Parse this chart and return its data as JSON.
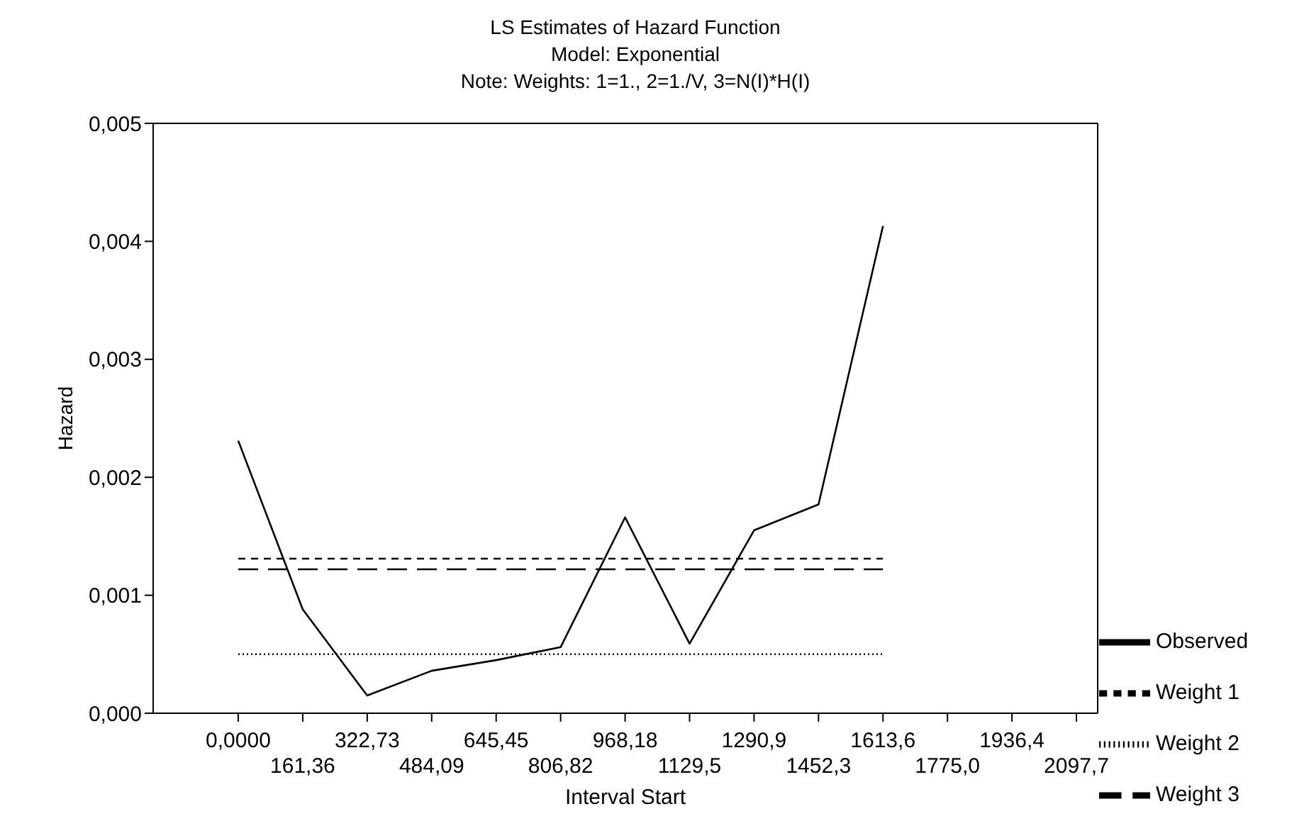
{
  "chart_data": {
    "type": "line",
    "title": "LS Estimates of Hazard Function",
    "subtitle": "Model: Exponential",
    "annotations": [
      "Note: Weights: 1=1., 2=1./V, 3=N(I)*H(I)"
    ],
    "xlabel": "Interval Start",
    "ylabel": "Hazard",
    "categories": [
      "0,0000",
      "161,36",
      "322,73",
      "484,09",
      "645,45",
      "806,82",
      "968,18",
      "1129,5",
      "1290,9",
      "1452,3",
      "1613,6",
      "1775,0",
      "1936,4",
      "2097,7"
    ],
    "ylim": [
      0,
      0.005
    ],
    "yticks": [
      {
        "value": 0,
        "label": "0,000"
      },
      {
        "value": 0.001,
        "label": "0,001"
      },
      {
        "value": 0.002,
        "label": "0,002"
      },
      {
        "value": 0.003,
        "label": "0,003"
      },
      {
        "value": 0.004,
        "label": "0,004"
      },
      {
        "value": 0.005,
        "label": "0,005"
      }
    ],
    "series": [
      {
        "name": "Observed",
        "color": "#000000",
        "line_style": "solid",
        "values": [
          0.00231,
          0.00088,
          0.00015,
          0.00036,
          0.00045,
          0.00056,
          0.00166,
          0.00059,
          0.00155,
          0.00177,
          0.00413,
          null,
          null,
          null
        ]
      },
      {
        "name": "Weight 1",
        "color": "#000000",
        "line_style": "dashed",
        "values": [
          0.00131,
          0.00131,
          0.00131,
          0.00131,
          0.00131,
          0.00131,
          0.00131,
          0.00131,
          0.00131,
          0.00131,
          0.00131,
          null,
          null,
          null
        ]
      },
      {
        "name": "Weight 2",
        "color": "#000000",
        "line_style": "dotted",
        "values": [
          0.0005,
          0.0005,
          0.0005,
          0.0005,
          0.0005,
          0.0005,
          0.0005,
          0.0005,
          0.0005,
          0.0005,
          0.0005,
          null,
          null,
          null
        ]
      },
      {
        "name": "Weight 3",
        "color": "#000000",
        "line_style": "longdash",
        "values": [
          0.00122,
          0.00122,
          0.00122,
          0.00122,
          0.00122,
          0.00122,
          0.00122,
          0.00122,
          0.00122,
          0.00122,
          0.00122,
          null,
          null,
          null
        ]
      }
    ],
    "marker": "none",
    "grid": false,
    "legend": "bottom right"
  }
}
